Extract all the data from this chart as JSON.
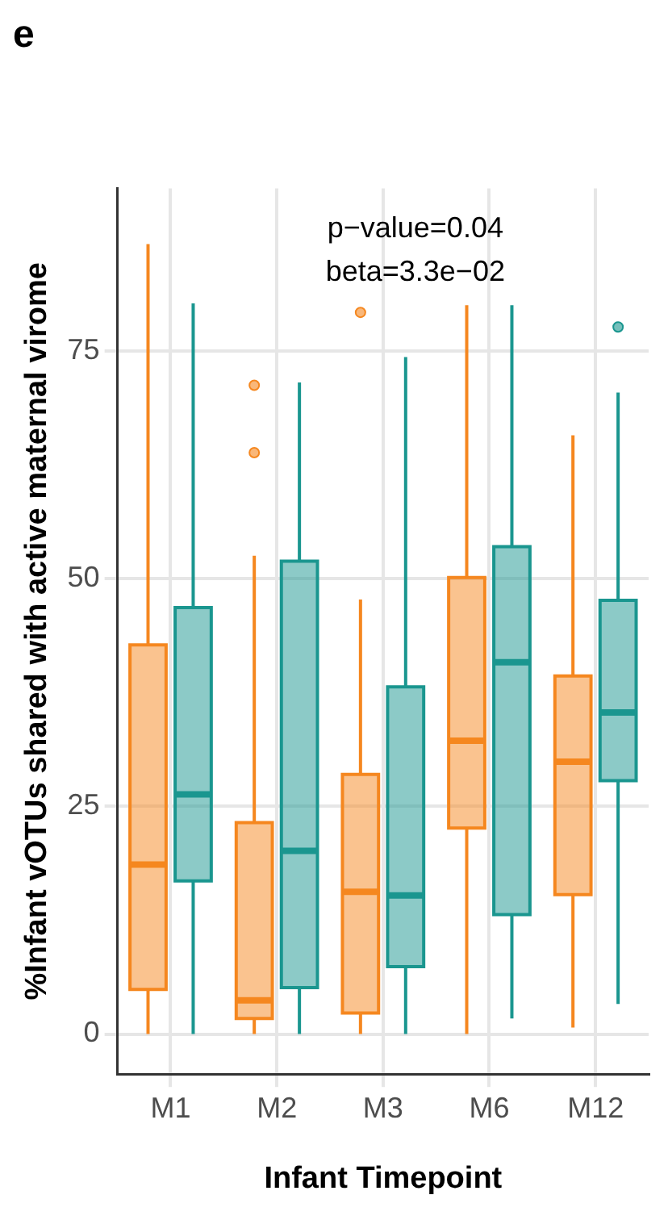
{
  "chart_data": {
    "type": "box",
    "title": "e",
    "xlabel": "Infant Timepoint",
    "ylabel": "%Infant vOTUs shared with active maternal virome",
    "annotations": [
      "p−value=0.04",
      "beta=3.3e−02"
    ],
    "categories": [
      "M1",
      "M2",
      "M3",
      "M6",
      "M12"
    ],
    "ylim": [
      -4.4,
      92.8
    ],
    "yticks": [
      0,
      25,
      50,
      75
    ],
    "grid": true,
    "legend": false,
    "series": [
      {
        "color": "#f5871f",
        "boxes": [
          {
            "low": 0,
            "q1": 4.9,
            "median": 18.6,
            "q3": 42.7,
            "high": 86.7
          },
          {
            "low": 0,
            "q1": 1.7,
            "median": 3.7,
            "q3": 23.2,
            "high": 52.5,
            "outliers": [
              63.8,
              71.2
            ]
          },
          {
            "low": 0,
            "q1": 2.3,
            "median": 15.6,
            "q3": 28.5,
            "high": 47.7,
            "outliers": [
              79.2
            ]
          },
          {
            "low": 0,
            "q1": 22.6,
            "median": 32.2,
            "q3": 50.1,
            "high": 80
          },
          {
            "low": 0.7,
            "q1": 15.3,
            "median": 29.9,
            "q3": 39.3,
            "high": 65.7
          }
        ]
      },
      {
        "color": "#1a968f",
        "boxes": [
          {
            "low": 0,
            "q1": 16.8,
            "median": 26.3,
            "q3": 46.8,
            "high": 80.2
          },
          {
            "low": 0,
            "q1": 5.1,
            "median": 20.1,
            "q3": 51.9,
            "high": 71.5
          },
          {
            "low": 0,
            "q1": 7.4,
            "median": 15.2,
            "q3": 38.1,
            "high": 74.3
          },
          {
            "low": 1.7,
            "q1": 13.1,
            "median": 40.8,
            "q3": 53.5,
            "high": 80
          },
          {
            "low": 3.3,
            "q1": 27.8,
            "median": 35.3,
            "q3": 47.6,
            "high": 70.4,
            "outliers": [
              77.6
            ]
          }
        ]
      }
    ]
  }
}
